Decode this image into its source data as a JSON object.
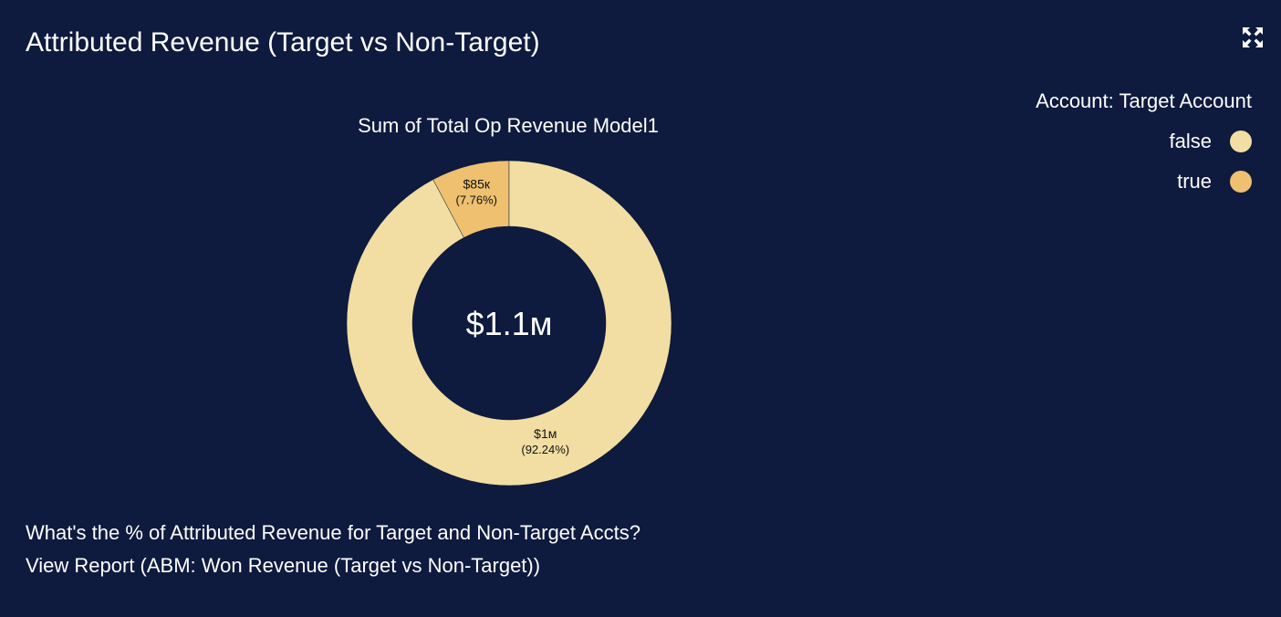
{
  "card": {
    "title": "Attributed Revenue (Target vs Non-Target)",
    "expand_icon": "expand-icon"
  },
  "chart_data": {
    "type": "pie",
    "variant": "donut",
    "title": "Sum of Total Op Revenue Model1",
    "center_label": "$1.1м",
    "legend_title": "Account: Target Account",
    "legend_position": "top-right",
    "slices": [
      {
        "name": "true",
        "value": 85000,
        "percent": 7.76,
        "value_label": "$85к",
        "percent_label": "(7.76%)",
        "color": "#eec070"
      },
      {
        "name": "false",
        "value": 1010000,
        "percent": 92.24,
        "value_label": "$1м",
        "percent_label": "(92.24%)",
        "color": "#f2dea2"
      }
    ]
  },
  "legend": {
    "items": [
      {
        "label": "false",
        "color": "#f2dea2"
      },
      {
        "label": "true",
        "color": "#eec070"
      }
    ]
  },
  "footer": {
    "question": "What's the % of Attributed Revenue for Target and Non-Target Accts?",
    "report_link": "View Report (ABM: Won Revenue (Target vs Non-Target))"
  },
  "colors": {
    "background": "#0e1a3e",
    "text": "#ffffff",
    "slice_label": "#111111"
  }
}
